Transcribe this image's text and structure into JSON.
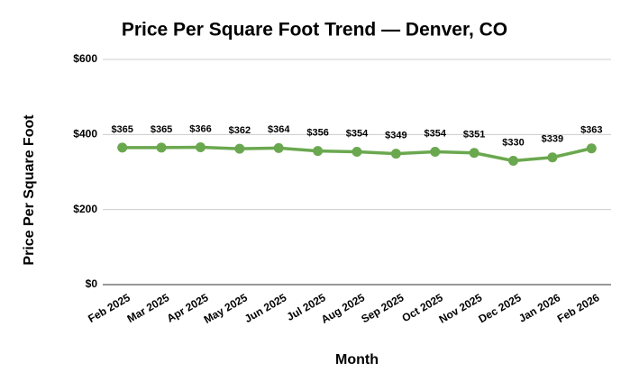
{
  "chart_data": {
    "type": "line",
    "title": "Price Per Square Foot Trend — Denver, CO",
    "x_label": "Month",
    "y_label": "Price Per Square Foot",
    "categories": [
      "Feb 2025",
      "Mar 2025",
      "Apr 2025",
      "May 2025",
      "Jun 2025",
      "Jul 2025",
      "Aug 2025",
      "Sep 2025",
      "Oct 2025",
      "Nov 2025",
      "Dec 2025",
      "Jan 2026",
      "Feb 2026"
    ],
    "values": [
      365,
      365,
      366,
      362,
      364,
      356,
      354,
      349,
      354,
      351,
      330,
      339,
      363
    ],
    "value_labels": [
      "$365",
      "$365",
      "$366",
      "$362",
      "$364",
      "$356",
      "$354",
      "$349",
      "$354",
      "$351",
      "$330",
      "$339",
      "$363"
    ],
    "color": "#6aa84f",
    "ylim": [
      0,
      600
    ],
    "yticks": [
      {
        "value": 0,
        "label": "$0"
      },
      {
        "value": 200,
        "label": "$200"
      },
      {
        "value": 400,
        "label": "$400"
      },
      {
        "value": 600,
        "label": "$600"
      }
    ],
    "grid": true
  }
}
